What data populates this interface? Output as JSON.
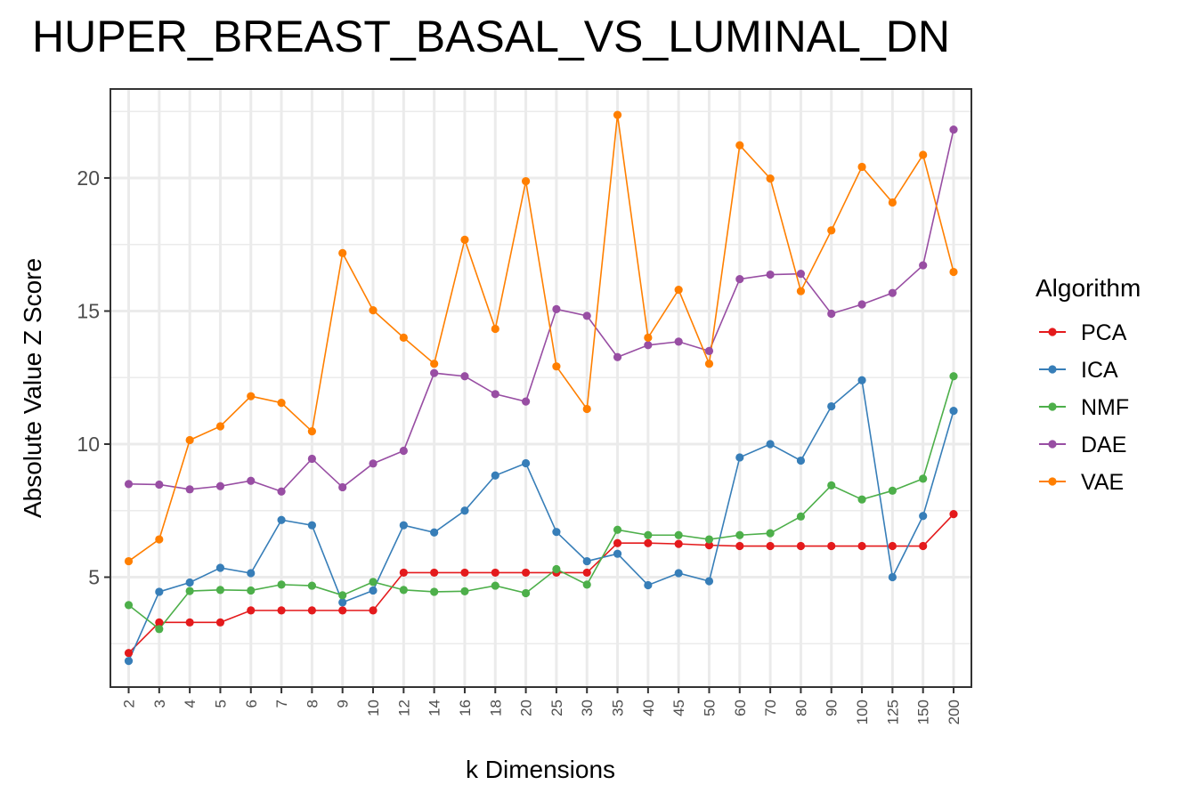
{
  "chart_data": {
    "type": "line",
    "title": "HUPER_BREAST_BASAL_VS_LUMINAL_DN",
    "xlabel": "k Dimensions",
    "ylabel": "Absolute Value Z Score",
    "legend_title": "Algorithm",
    "legend_position": "right",
    "grid": true,
    "categories": [
      "2",
      "3",
      "4",
      "5",
      "6",
      "7",
      "8",
      "9",
      "10",
      "12",
      "14",
      "16",
      "18",
      "20",
      "25",
      "30",
      "35",
      "40",
      "45",
      "50",
      "60",
      "70",
      "80",
      "90",
      "100",
      "125",
      "150",
      "200"
    ],
    "y_ticks": [
      5,
      10,
      15,
      20
    ],
    "ylim": [
      1.0,
      22.8
    ],
    "series": [
      {
        "name": "PCA",
        "color": "#e41a1c",
        "values": [
          2.15,
          3.3,
          3.3,
          3.3,
          3.75,
          3.75,
          3.75,
          3.75,
          3.75,
          5.17,
          5.17,
          5.17,
          5.17,
          5.17,
          5.17,
          5.17,
          6.28,
          6.28,
          6.25,
          6.2,
          6.17,
          6.17,
          6.17,
          6.17,
          6.17,
          6.17,
          6.17,
          7.37
        ]
      },
      {
        "name": "ICA",
        "color": "#377eb8",
        "values": [
          1.85,
          4.45,
          4.8,
          5.35,
          5.15,
          7.15,
          6.95,
          4.05,
          4.5,
          6.95,
          6.68,
          7.5,
          8.82,
          9.28,
          6.7,
          5.6,
          5.88,
          4.7,
          5.15,
          4.85,
          9.5,
          10.0,
          9.38,
          11.42,
          12.4,
          5.0,
          7.3,
          11.25
        ]
      },
      {
        "name": "NMF",
        "color": "#4daf4a",
        "values": [
          3.95,
          3.05,
          4.48,
          4.52,
          4.5,
          4.72,
          4.68,
          4.32,
          4.82,
          4.52,
          4.45,
          4.47,
          4.68,
          4.4,
          5.3,
          4.72,
          6.78,
          6.58,
          6.58,
          6.42,
          6.58,
          6.65,
          7.28,
          8.45,
          7.92,
          8.25,
          8.7,
          12.55
        ]
      },
      {
        "name": "DAE",
        "color": "#984ea3",
        "values": [
          8.5,
          8.48,
          8.3,
          8.42,
          8.62,
          8.22,
          9.45,
          8.38,
          9.27,
          9.75,
          12.67,
          12.55,
          11.88,
          11.6,
          15.07,
          14.82,
          13.27,
          13.72,
          13.85,
          13.5,
          16.2,
          16.37,
          16.4,
          14.9,
          15.25,
          15.68,
          16.72,
          21.82
        ]
      },
      {
        "name": "VAE",
        "color": "#ff7f00",
        "values": [
          5.6,
          6.42,
          10.15,
          10.67,
          11.8,
          11.55,
          10.48,
          17.18,
          15.03,
          14.0,
          13.02,
          17.68,
          14.33,
          19.88,
          12.92,
          11.32,
          22.37,
          14.0,
          15.8,
          13.02,
          21.23,
          19.98,
          15.75,
          18.03,
          20.42,
          19.08,
          20.87,
          16.47
        ]
      }
    ]
  }
}
